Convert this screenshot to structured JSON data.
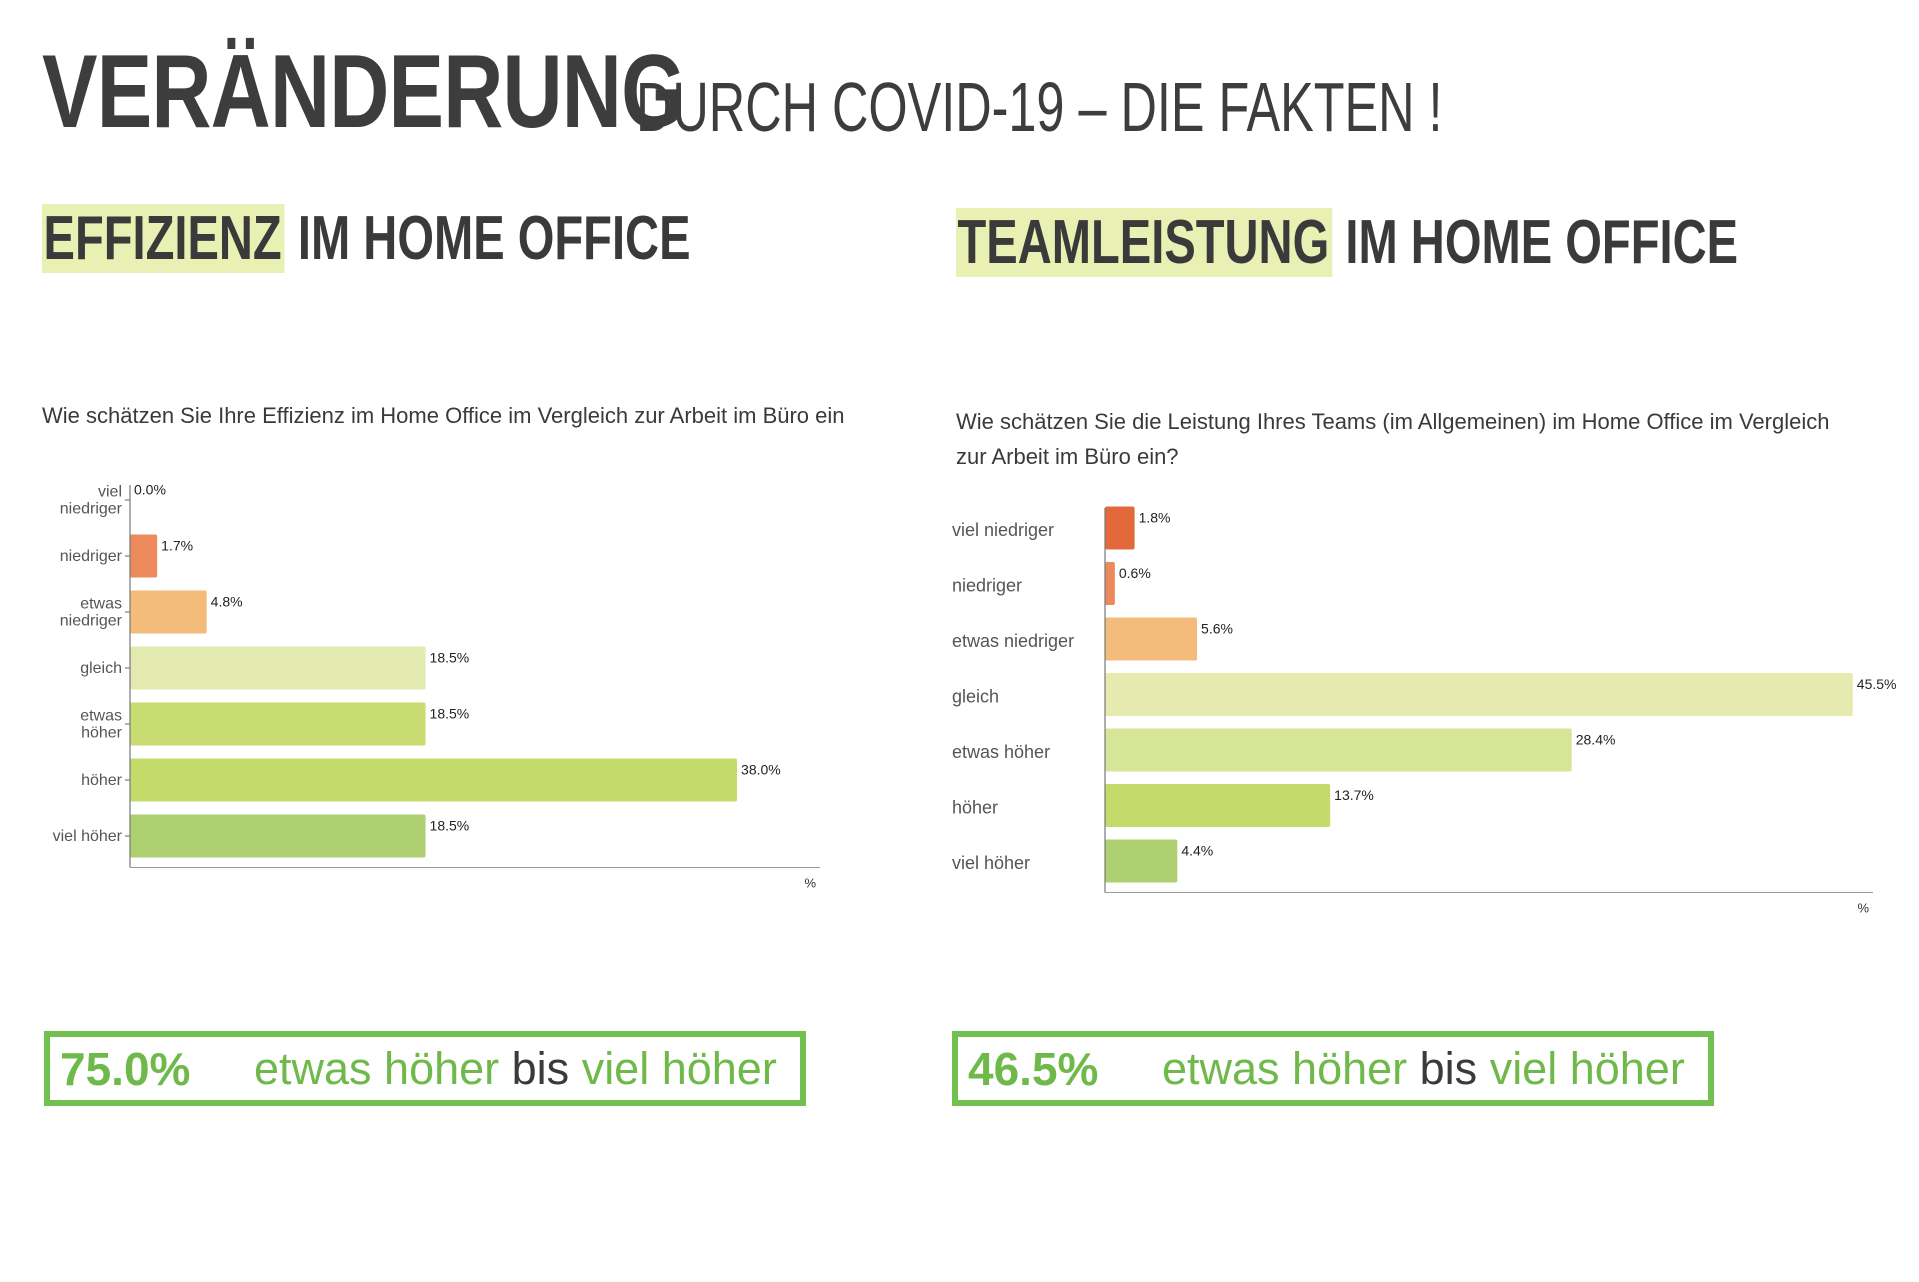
{
  "header": {
    "title": "VERÄNDERUNG",
    "subtitle": "DURCH COVID-19 – DIE FAKTEN !"
  },
  "panels": [
    {
      "heading_highlight": "EFFIZIENZ",
      "heading_rest": " IM HOME OFFICE",
      "question": "Wie schätzen Sie Ihre Effizienz im Home Office im Vergleich zur Arbeit im Büro ein",
      "summary": {
        "value": "75.0%",
        "from": "etwas höher",
        "connector": " bis ",
        "to": "viel höher"
      }
    },
    {
      "heading_highlight": "TEAMLEISTUNG",
      "heading_rest": " IM HOME OFFICE",
      "question": "Wie schätzen Sie die Leistung Ihres Teams (im Allgemeinen) im Home Office im Vergleich zur Arbeit im Büro ein?",
      "summary": {
        "value": "46.5%",
        "from": "etwas höher",
        "connector": " bis ",
        "to": "viel höher"
      }
    }
  ],
  "colors": {
    "accent_green": "#6fb94a",
    "highlight": "#e8f0b4",
    "summary_border": "#72c04f"
  },
  "chart_data": [
    {
      "type": "bar",
      "orientation": "horizontal",
      "categories": [
        "viel\nniedriger",
        "niedriger",
        "etwas\nniedriger",
        "gleich",
        "etwas\nhöher",
        "höher",
        "viel höher"
      ],
      "values": [
        0.0,
        1.7,
        4.8,
        18.5,
        18.5,
        38.0,
        18.5
      ],
      "labels": [
        "0.0%",
        "1.7%",
        "4.8%",
        "18.5%",
        "18.5%",
        "38.0%",
        "18.5%"
      ],
      "colors": [
        "#e06a3b",
        "#ec8a5c",
        "#f3bc7b",
        "#e3eaaf",
        "#c8dc72",
        "#c4da6a",
        "#aed070"
      ],
      "xlabel": "%",
      "xlim": [
        0,
        40.5
      ],
      "grid": false
    },
    {
      "type": "bar",
      "orientation": "horizontal",
      "categories": [
        "viel niedriger",
        "niedriger",
        "etwas niedriger",
        "gleich",
        "etwas höher",
        "höher",
        "viel höher"
      ],
      "values": [
        1.8,
        0.6,
        5.6,
        45.5,
        28.4,
        13.7,
        4.4
      ],
      "labels": [
        "1.8%",
        "0.6%",
        "5.6%",
        "45.5%",
        "28.4%",
        "13.7%",
        "4.4%"
      ],
      "colors": [
        "#e3683a",
        "#ec8a5c",
        "#f3bc7b",
        "#e6eaae",
        "#d6e596",
        "#c4da6a",
        "#aed070"
      ],
      "xlabel": "%",
      "xlim": [
        0,
        46
      ],
      "grid": false
    }
  ]
}
